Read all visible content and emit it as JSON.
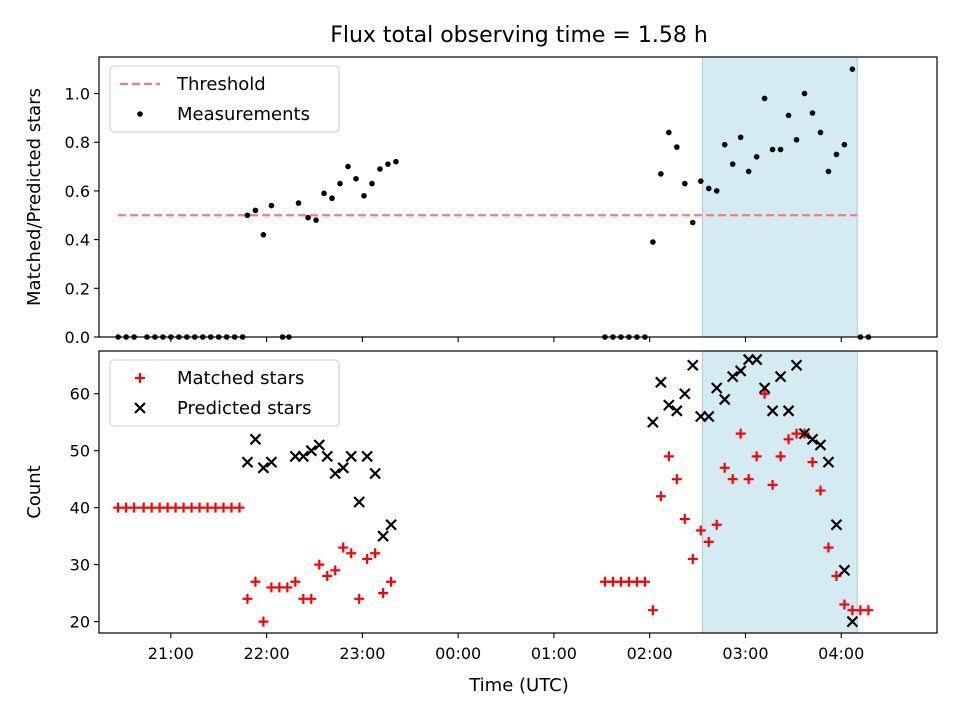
{
  "figure": {
    "title": "Flux total observing time = 1.58 h",
    "xlabel": "Time (UTC)",
    "xticks": [
      "21:00",
      "22:00",
      "23:00",
      "00:00",
      "01:00",
      "02:00",
      "03:00",
      "04:00"
    ]
  },
  "chart_data": [
    {
      "type": "scatter",
      "name": "ratio-panel",
      "ylabel": "Matched/Predicted stars",
      "xlim": [
        "20:15",
        "05:00"
      ],
      "ylim": [
        0,
        1.15
      ],
      "yticks": [
        "0.0",
        "0.2",
        "0.4",
        "0.6",
        "0.8",
        "1.0"
      ],
      "ytick_values": [
        0,
        0.2,
        0.4,
        0.6,
        0.8,
        1.0
      ],
      "legend": {
        "placement": "top-left",
        "entries": [
          "Threshold",
          "Measurements"
        ]
      },
      "threshold": {
        "label": "Threshold",
        "y": 0.5,
        "x_range": [
          "20:27",
          "04:10"
        ],
        "color": "#ff7777"
      },
      "highlight_span": {
        "x_range": [
          "02:33",
          "04:10"
        ],
        "color": "#d4ebf1"
      },
      "series": [
        {
          "name": "Measurements",
          "color": "#000000",
          "points": [
            [
              "20:27",
              0
            ],
            [
              "20:32",
              0
            ],
            [
              "20:37",
              0
            ],
            [
              "20:45",
              0
            ],
            [
              "20:50",
              0
            ],
            [
              "20:55",
              0
            ],
            [
              "21:00",
              0
            ],
            [
              "21:05",
              0
            ],
            [
              "21:10",
              0
            ],
            [
              "21:15",
              0
            ],
            [
              "21:20",
              0
            ],
            [
              "21:25",
              0
            ],
            [
              "21:30",
              0
            ],
            [
              "21:35",
              0
            ],
            [
              "21:40",
              0
            ],
            [
              "21:45",
              0
            ],
            [
              "21:48",
              0.5
            ],
            [
              "21:53",
              0.52
            ],
            [
              "21:58",
              0.42
            ],
            [
              "22:03",
              0.54
            ],
            [
              "22:10",
              0
            ],
            [
              "22:14",
              0
            ],
            [
              "22:20",
              0.55
            ],
            [
              "22:26",
              0.49
            ],
            [
              "22:31",
              0.48
            ],
            [
              "22:36",
              0.59
            ],
            [
              "22:41",
              0.57
            ],
            [
              "22:46",
              0.63
            ],
            [
              "22:51",
              0.7
            ],
            [
              "22:56",
              0.65
            ],
            [
              "23:01",
              0.58
            ],
            [
              "23:06",
              0.63
            ],
            [
              "23:11",
              0.69
            ],
            [
              "23:16",
              0.71
            ],
            [
              "23:21",
              0.72
            ],
            [
              "01:32",
              0
            ],
            [
              "01:37",
              0
            ],
            [
              "01:42",
              0
            ],
            [
              "01:47",
              0
            ],
            [
              "01:52",
              0
            ],
            [
              "01:57",
              0
            ],
            [
              "02:02",
              0.39
            ],
            [
              "02:07",
              0.67
            ],
            [
              "02:12",
              0.84
            ],
            [
              "02:17",
              0.78
            ],
            [
              "02:22",
              0.63
            ],
            [
              "02:27",
              0.47
            ],
            [
              "02:32",
              0.64
            ],
            [
              "02:37",
              0.61
            ],
            [
              "02:42",
              0.6
            ],
            [
              "02:47",
              0.79
            ],
            [
              "02:52",
              0.71
            ],
            [
              "02:57",
              0.82
            ],
            [
              "03:02",
              0.68
            ],
            [
              "03:07",
              0.74
            ],
            [
              "03:12",
              0.98
            ],
            [
              "03:17",
              0.77
            ],
            [
              "03:22",
              0.77
            ],
            [
              "03:27",
              0.91
            ],
            [
              "03:32",
              0.81
            ],
            [
              "03:37",
              1.0
            ],
            [
              "03:42",
              0.92
            ],
            [
              "03:47",
              0.84
            ],
            [
              "03:52",
              0.68
            ],
            [
              "03:57",
              0.75
            ],
            [
              "04:02",
              0.79
            ],
            [
              "04:07",
              1.1
            ],
            [
              "04:12",
              0
            ],
            [
              "04:17",
              0
            ]
          ]
        }
      ]
    },
    {
      "type": "scatter",
      "name": "count-panel",
      "ylabel": "Count",
      "xlim": [
        "20:15",
        "05:00"
      ],
      "ylim": [
        18,
        67.5
      ],
      "yticks": [
        "20",
        "30",
        "40",
        "50",
        "60"
      ],
      "ytick_values": [
        20,
        30,
        40,
        50,
        60
      ],
      "legend": {
        "placement": "top-left",
        "entries": [
          "Matched stars",
          "Predicted stars"
        ]
      },
      "highlight_span": {
        "x_range": [
          "02:33",
          "04:10"
        ],
        "color": "#d4ebf1"
      },
      "series": [
        {
          "name": "Matched stars",
          "marker": "plus",
          "color": "#ff0000",
          "points": [
            [
              "20:27",
              40
            ],
            [
              "20:32",
              40
            ],
            [
              "20:37",
              40
            ],
            [
              "20:43",
              40
            ],
            [
              "20:48",
              40
            ],
            [
              "20:53",
              40
            ],
            [
              "20:58",
              40
            ],
            [
              "21:03",
              40
            ],
            [
              "21:08",
              40
            ],
            [
              "21:13",
              40
            ],
            [
              "21:18",
              40
            ],
            [
              "21:23",
              40
            ],
            [
              "21:28",
              40
            ],
            [
              "21:33",
              40
            ],
            [
              "21:38",
              40
            ],
            [
              "21:43",
              40
            ],
            [
              "21:48",
              24
            ],
            [
              "21:53",
              27
            ],
            [
              "21:58",
              20
            ],
            [
              "22:03",
              26
            ],
            [
              "22:08",
              26
            ],
            [
              "22:13",
              26
            ],
            [
              "22:18",
              27
            ],
            [
              "22:23",
              24
            ],
            [
              "22:28",
              24
            ],
            [
              "22:33",
              30
            ],
            [
              "22:38",
              28
            ],
            [
              "22:43",
              29
            ],
            [
              "22:48",
              33
            ],
            [
              "22:53",
              32
            ],
            [
              "22:58",
              24
            ],
            [
              "23:03",
              31
            ],
            [
              "23:08",
              32
            ],
            [
              "23:13",
              25
            ],
            [
              "23:18",
              27
            ],
            [
              "01:32",
              27
            ],
            [
              "01:37",
              27
            ],
            [
              "01:42",
              27
            ],
            [
              "01:47",
              27
            ],
            [
              "01:52",
              27
            ],
            [
              "01:57",
              27
            ],
            [
              "02:02",
              22
            ],
            [
              "02:07",
              42
            ],
            [
              "02:12",
              49
            ],
            [
              "02:17",
              45
            ],
            [
              "02:22",
              38
            ],
            [
              "02:27",
              31
            ],
            [
              "02:32",
              36
            ],
            [
              "02:37",
              34
            ],
            [
              "02:42",
              37
            ],
            [
              "02:47",
              47
            ],
            [
              "02:52",
              45
            ],
            [
              "02:57",
              53
            ],
            [
              "03:02",
              45
            ],
            [
              "03:07",
              49
            ],
            [
              "03:12",
              60
            ],
            [
              "03:17",
              44
            ],
            [
              "03:22",
              49
            ],
            [
              "03:27",
              52
            ],
            [
              "03:32",
              53
            ],
            [
              "03:37",
              53
            ],
            [
              "03:42",
              48
            ],
            [
              "03:47",
              43
            ],
            [
              "03:52",
              33
            ],
            [
              "03:57",
              28
            ],
            [
              "04:02",
              23
            ],
            [
              "04:07",
              22
            ],
            [
              "04:12",
              22
            ],
            [
              "04:17",
              22
            ]
          ]
        },
        {
          "name": "Predicted stars",
          "marker": "x",
          "color": "#000000",
          "points": [
            [
              "21:48",
              48
            ],
            [
              "21:53",
              52
            ],
            [
              "21:58",
              47
            ],
            [
              "22:03",
              48
            ],
            [
              "22:18",
              49
            ],
            [
              "22:23",
              49
            ],
            [
              "22:28",
              50
            ],
            [
              "22:33",
              51
            ],
            [
              "22:38",
              49
            ],
            [
              "22:43",
              46
            ],
            [
              "22:48",
              47
            ],
            [
              "22:53",
              49
            ],
            [
              "22:58",
              41
            ],
            [
              "23:03",
              49
            ],
            [
              "23:08",
              46
            ],
            [
              "23:13",
              35
            ],
            [
              "23:18",
              37
            ],
            [
              "02:02",
              55
            ],
            [
              "02:07",
              62
            ],
            [
              "02:12",
              58
            ],
            [
              "02:17",
              57
            ],
            [
              "02:22",
              60
            ],
            [
              "02:27",
              65
            ],
            [
              "02:32",
              56
            ],
            [
              "02:37",
              56
            ],
            [
              "02:42",
              61
            ],
            [
              "02:47",
              59
            ],
            [
              "02:52",
              63
            ],
            [
              "02:57",
              64
            ],
            [
              "03:02",
              66
            ],
            [
              "03:07",
              66
            ],
            [
              "03:12",
              61
            ],
            [
              "03:17",
              57
            ],
            [
              "03:22",
              63
            ],
            [
              "03:27",
              57
            ],
            [
              "03:32",
              65
            ],
            [
              "03:37",
              53
            ],
            [
              "03:42",
              52
            ],
            [
              "03:47",
              51
            ],
            [
              "03:52",
              48
            ],
            [
              "03:57",
              37
            ],
            [
              "04:02",
              29
            ],
            [
              "04:07",
              20
            ]
          ]
        }
      ]
    }
  ]
}
